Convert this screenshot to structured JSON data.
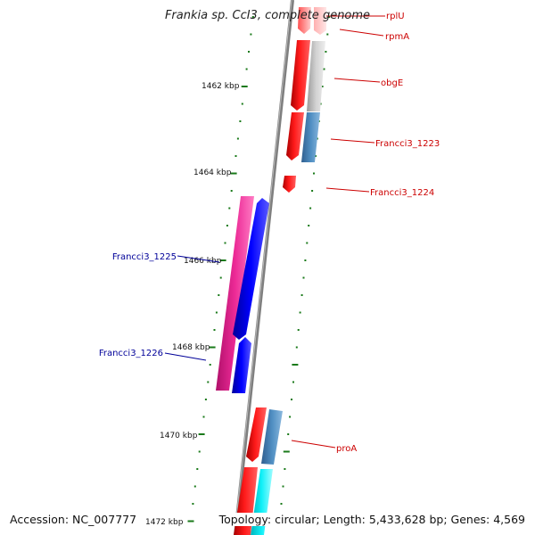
{
  "header": {
    "title": "Frankia sp. CcI3, complete genome"
  },
  "footer": {
    "accession": "Accession: NC_007777",
    "topology": "Topology: circular; Length: 5,433,628 bp; Genes: 4,569"
  },
  "ruler": {
    "labels": [
      "1462 kbp",
      "1464 kbp",
      "1466 kbp",
      "1468 kbp",
      "1470 kbp",
      "1472 kbp"
    ]
  },
  "genes": {
    "rplU": "rplU",
    "rpmA": "rpmA",
    "obgE": "obgE",
    "francci3_1223": "Francci3_1223",
    "francci3_1224": "Francci3_1224",
    "francci3_1225": "Francci3_1225",
    "francci3_1226": "Francci3_1226",
    "proA": "proA"
  },
  "colors": {
    "backbone": "#808080",
    "tick": "#1a7a1a",
    "red_feature": "#ff0000",
    "gray_feature": "#bdbdbd",
    "steel_feature": "#4682b4",
    "magenta_feature": "#e6148c",
    "blue_feature": "#0000ee",
    "cyan_feature": "#00e5ee",
    "red_label": "#cc0000",
    "blue_label": "#000099"
  }
}
